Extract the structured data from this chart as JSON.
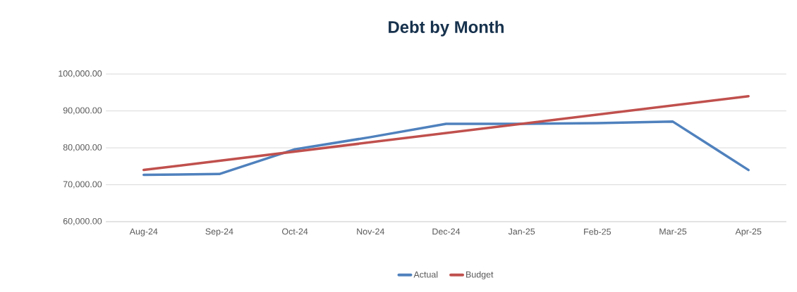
{
  "chart_data": {
    "type": "line",
    "title": "Debt by Month",
    "categories": [
      "Aug-24",
      "Sep-24",
      "Oct-24",
      "Nov-24",
      "Dec-24",
      "Jan-25",
      "Feb-25",
      "Mar-25",
      "Apr-25"
    ],
    "series": [
      {
        "name": "Actual",
        "color": "#4f81bd",
        "values": [
          72700,
          72900,
          79600,
          82900,
          86500,
          86500,
          86700,
          87100,
          74000
        ]
      },
      {
        "name": "Budget",
        "color": "#c0504d",
        "values": [
          74000,
          76500,
          79000,
          81500,
          84000,
          86500,
          89000,
          91500,
          94000
        ]
      }
    ],
    "ylim": [
      60000,
      100000
    ],
    "yticks": [
      {
        "value": 60000,
        "label": "60,000.00"
      },
      {
        "value": 70000,
        "label": "70,000.00"
      },
      {
        "value": 80000,
        "label": "80,000.00"
      },
      {
        "value": 90000,
        "label": "90,000.00"
      },
      {
        "value": 100000,
        "label": "100,000.00"
      }
    ],
    "grid": "y",
    "legend": "bottom",
    "marker": "none",
    "line_style": "solid"
  }
}
